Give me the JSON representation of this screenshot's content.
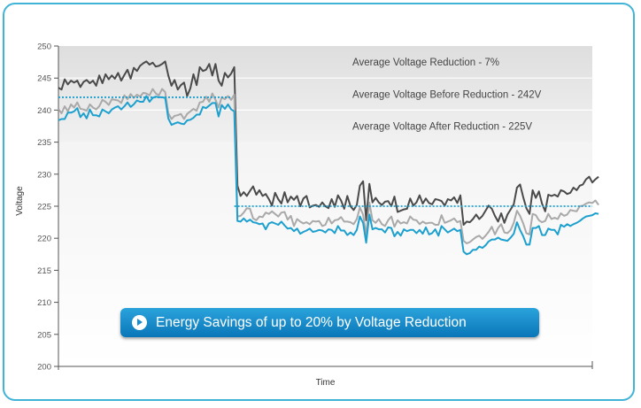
{
  "chart_data": {
    "type": "line",
    "xlabel": "Time",
    "ylabel": "Voltage",
    "ylim": [
      200,
      250
    ],
    "yticks": [
      200,
      205,
      210,
      215,
      220,
      225,
      230,
      235,
      240,
      245,
      250
    ],
    "grid": "horizontal bands",
    "x_count": 171,
    "annotations": [
      "Average Voltage Reduction - 7%",
      "Average Voltage Before Reduction - 242V",
      "Average Voltage After Reduction - 225V"
    ],
    "reference_lines": [
      {
        "value": 242,
        "x_start": 0,
        "x_end": 55
      },
      {
        "value": 225,
        "x_start": 56,
        "x_end": 170
      }
    ],
    "colors": {
      "dark": "#4a4a4a",
      "gray": "#a9a9a9",
      "blue": "#1ea0cf",
      "reference": "#1ea0cf"
    },
    "series": [
      {
        "color_key": "dark",
        "values": [
          243.5,
          243.2,
          244.8,
          244,
          244.6,
          244.3,
          244.6,
          243.6,
          244.4,
          244.7,
          244.2,
          244.6,
          243.8,
          245.4,
          244.2,
          245.6,
          244.8,
          245.4,
          244.9,
          245.8,
          244.6,
          245.5,
          246.3,
          244.9,
          246.6,
          246.1,
          246.9,
          247.3,
          247.6,
          247.1,
          247.4,
          246.8,
          246.9,
          247.2,
          247.6,
          245.4,
          243.8,
          244.7,
          243.2,
          243.9,
          244.3,
          242.2,
          243.4,
          245.6,
          243.9,
          246.7,
          246.1,
          246.3,
          247.2,
          245.4,
          247.2,
          244.6,
          243.8,
          245.8,
          245.1,
          245.7,
          246.7,
          228.2,
          226.6,
          227.2,
          226.6,
          227.4,
          228.1,
          226.8,
          227.5,
          226.6,
          226.9,
          226.1,
          225.1,
          227.1,
          226.1,
          225.4,
          227.2,
          225.6,
          226.5,
          226,
          226.6,
          225,
          226.2,
          226.6,
          224.8,
          225.1,
          225.2,
          224.9,
          225.6,
          225,
          224.7,
          226.1,
          224.9,
          226.7,
          225.9,
          224.6,
          226.6,
          225,
          224.4,
          225.2,
          228.2,
          228.9,
          222.8,
          228.5,
          225.6,
          226.3,
          225.6,
          225.2,
          225.7,
          225.8,
          225,
          226.5,
          224.1,
          224.3,
          224.5,
          224.6,
          226.2,
          225.1,
          225.6,
          226.7,
          225.4,
          226.2,
          225.5,
          225.3,
          226.1,
          226,
          225.8,
          225.1,
          226.1,
          225.9,
          226.4,
          225.5,
          226.7,
          222.1,
          222.6,
          222.5,
          223,
          223.7,
          223,
          223.5,
          224.3,
          225.1,
          224.6,
          223.5,
          222.6,
          223.9,
          222.4,
          223.7,
          224.5,
          225.3,
          227.9,
          228.4,
          226.4,
          224.7,
          223.8,
          227.5,
          226.3,
          227.3,
          225.4,
          224.2,
          226.8,
          226.6,
          226.8,
          226.5,
          227.5,
          227.3,
          226.9,
          227.1,
          227.9,
          227.5,
          228.2,
          228.4,
          229.2,
          229.6,
          228.7,
          229.2,
          229.6
        ]
      },
      {
        "color_key": "gray",
        "values": [
          240.2,
          239.5,
          240.6,
          239.8,
          240.9,
          240.4,
          241.2,
          240.2,
          240.1,
          239.9,
          240.9,
          240.4,
          240.1,
          240.6,
          241.6,
          241.3,
          240.8,
          241.7,
          241.6,
          241.5,
          241.1,
          242.3,
          241.7,
          242.5,
          241.9,
          242.4,
          242.1,
          242.7,
          242.6,
          242.3,
          243.3,
          242.6,
          242.3,
          243.3,
          242.8,
          239.5,
          238.6,
          239.1,
          239.2,
          239.4,
          238.6,
          239.4,
          239.8,
          240.2,
          239.9,
          241.2,
          241.3,
          242.1,
          241.3,
          242.6,
          241.6,
          240.4,
          242,
          241.7,
          242.2,
          241.6,
          242.4,
          223.4,
          223.5,
          224,
          224.7,
          224.6,
          223.1,
          222.8,
          223.4,
          223.3,
          224,
          223.8,
          224.2,
          223.8,
          223.4,
          224,
          224.1,
          222.9,
          223.5,
          221.9,
          223,
          222.6,
          222.3,
          222.5,
          222.2,
          222.7,
          222.6,
          222.7,
          221.9,
          222.1,
          223.2,
          222.3,
          222.8,
          222.9,
          223.3,
          222.6,
          222.6,
          222.5,
          222.2,
          223,
          224.8,
          223.7,
          220.5,
          225.6,
          222.8,
          222.4,
          223,
          222.2,
          221.9,
          222.8,
          223.4,
          221.8,
          222.8,
          222.3,
          222.5,
          222.3,
          223.4,
          222.9,
          222.8,
          222.2,
          222.6,
          222.3,
          222.4,
          222.4,
          222.1,
          222.1,
          223.6,
          222.4,
          222.6,
          222.8,
          223.1,
          222.5,
          222.7,
          219.6,
          219.2,
          219.4,
          219.8,
          220.2,
          220.4,
          219.9,
          220.4,
          221,
          221.8,
          220.6,
          221.6,
          222.2,
          220.9,
          220.8,
          221.3,
          222.4,
          224.3,
          223.5,
          222.3,
          220.8,
          220.6,
          223.8,
          223.6,
          222.8,
          222.5,
          222.7,
          223.8,
          223,
          223.2,
          223,
          223.9,
          223.5,
          223.7,
          224.4,
          224.3,
          224.2,
          225,
          225.1,
          225.4,
          225.6,
          225.5,
          225.9,
          225.2
        ]
      },
      {
        "color_key": "blue",
        "values": [
          238.4,
          238.6,
          238.6,
          239.6,
          239.6,
          239.8,
          240.3,
          238.9,
          239.5,
          238.7,
          240.1,
          239.2,
          239.2,
          239,
          240.1,
          239.8,
          239.5,
          240.1,
          240.4,
          240.6,
          240.1,
          240.6,
          241.2,
          240.5,
          240.9,
          241.5,
          241.3,
          241.3,
          242.2,
          241.3,
          241.9,
          242.1,
          242,
          242,
          241.9,
          238.7,
          237.7,
          237.9,
          238.1,
          237.9,
          237.8,
          238.4,
          238.5,
          238.8,
          239.3,
          239.3,
          240.5,
          240.3,
          240.7,
          241.1,
          241.1,
          239,
          240.8,
          240.2,
          240.9,
          240.1,
          239.8,
          222.7,
          222.6,
          223.1,
          222.6,
          222.9,
          222.5,
          222.4,
          222.2,
          222.3,
          221.4,
          222.3,
          222.5,
          222.3,
          222.1,
          222.6,
          222,
          221.5,
          221.6,
          221.1,
          221.5,
          220.7,
          221,
          221.2,
          221.5,
          221,
          221.1,
          221.3,
          221.2,
          220.9,
          221.4,
          221.3,
          220.8,
          221.9,
          221.2,
          221.2,
          220.5,
          220.9,
          220.5,
          221.3,
          223.4,
          222.4,
          219.3,
          223.7,
          221.4,
          221.6,
          221.4,
          221.4,
          220.9,
          221.7,
          221.6,
          220.3,
          221,
          220.4,
          221.4,
          221.1,
          221.3,
          221.3,
          220.8,
          221.3,
          220.7,
          221.7,
          220.6,
          220.8,
          221.4,
          220.4,
          221.9,
          221.4,
          220.9,
          221.2,
          221.5,
          221.1,
          221.3,
          217.9,
          217.5,
          217.7,
          218.2,
          218.2,
          218.7,
          218.5,
          218.9,
          219.5,
          219.8,
          219.8,
          220.1,
          219.8,
          219.7,
          219.6,
          220.1,
          220.7,
          222.5,
          221.3,
          220.3,
          219,
          219,
          221.6,
          221.6,
          221.9,
          220.5,
          220.5,
          221.5,
          221.3,
          221.3,
          220.6,
          222.1,
          221.8,
          222.2,
          221.9,
          222.2,
          222.4,
          222.7,
          223.1,
          223.4,
          223.5,
          223.6,
          223.9,
          223.8
        ]
      }
    ]
  },
  "banner": {
    "text": "Energy Savings of up to 20% by Voltage Reduction"
  },
  "icons": {
    "banner_icon": "play-circle-icon"
  }
}
